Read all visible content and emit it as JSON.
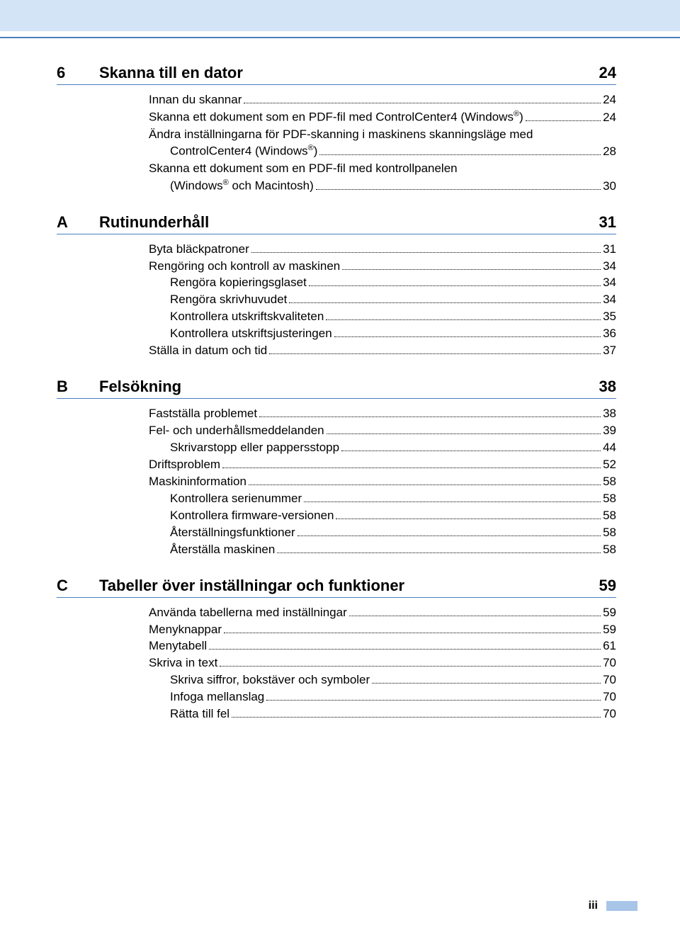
{
  "colors": {
    "top_band": "#d4e4f7",
    "rule": "#4a7fc1",
    "footer_tab": "#a8c5e8",
    "text": "#000000",
    "background": "#ffffff"
  },
  "page_number": "iii",
  "sections": [
    {
      "label": "6",
      "title": "Skanna till en dator",
      "page": "24",
      "entries": [
        {
          "indent": 0,
          "text": "Innan du skannar",
          "page": "24"
        },
        {
          "indent": 0,
          "text": "Skanna ett dokument som en PDF-fil med ControlCenter4 (Windows®)",
          "page": "24",
          "sup": true
        },
        {
          "indent": 0,
          "text": "Ändra inställningarna för PDF-skanning i maskinens skanningsläge med ControlCenter4 (Windows®)",
          "page": "28",
          "sup": true,
          "wrap": "ControlCenter4 (Windows®)"
        },
        {
          "indent": 0,
          "text": "Skanna ett dokument som en PDF-fil med kontrollpanelen (Windows® och Macintosh)",
          "page": "30",
          "sup": true,
          "wrap": "(Windows® och Macintosh)"
        }
      ]
    },
    {
      "label": "A",
      "title": "Rutinunderhåll",
      "page": "31",
      "entries": [
        {
          "indent": 0,
          "text": "Byta bläckpatroner",
          "page": "31"
        },
        {
          "indent": 0,
          "text": "Rengöring och kontroll av maskinen",
          "page": "34"
        },
        {
          "indent": 1,
          "text": "Rengöra kopieringsglaset",
          "page": "34"
        },
        {
          "indent": 1,
          "text": "Rengöra skrivhuvudet",
          "page": "34"
        },
        {
          "indent": 1,
          "text": "Kontrollera utskriftskvaliteten",
          "page": "35"
        },
        {
          "indent": 1,
          "text": "Kontrollera utskriftsjusteringen",
          "page": "36"
        },
        {
          "indent": 0,
          "text": "Ställa in datum och tid",
          "page": "37"
        }
      ]
    },
    {
      "label": "B",
      "title": "Felsökning",
      "page": "38",
      "entries": [
        {
          "indent": 0,
          "text": "Fastställa problemet",
          "page": "38"
        },
        {
          "indent": 0,
          "text": "Fel- och underhållsmeddelanden",
          "page": "39"
        },
        {
          "indent": 1,
          "text": "Skrivarstopp eller pappersstopp",
          "page": "44"
        },
        {
          "indent": 0,
          "text": "Driftsproblem",
          "page": "52"
        },
        {
          "indent": 0,
          "text": "Maskininformation",
          "page": "58"
        },
        {
          "indent": 1,
          "text": "Kontrollera serienummer",
          "page": "58"
        },
        {
          "indent": 1,
          "text": "Kontrollera firmware-versionen",
          "page": "58"
        },
        {
          "indent": 1,
          "text": "Återställningsfunktioner",
          "page": "58"
        },
        {
          "indent": 1,
          "text": "Återställa maskinen",
          "page": "58"
        }
      ]
    },
    {
      "label": "C",
      "title": "Tabeller över inställningar och funktioner",
      "page": "59",
      "entries": [
        {
          "indent": 0,
          "text": "Använda tabellerna med inställningar",
          "page": "59"
        },
        {
          "indent": 0,
          "text": "Menyknappar",
          "page": "59"
        },
        {
          "indent": 0,
          "text": "Menytabell",
          "page": "61"
        },
        {
          "indent": 0,
          "text": "Skriva in text",
          "page": "70"
        },
        {
          "indent": 1,
          "text": "Skriva siffror, bokstäver och symboler",
          "page": "70"
        },
        {
          "indent": 1,
          "text": "Infoga mellanslag",
          "page": "70"
        },
        {
          "indent": 1,
          "text": "Rätta till fel",
          "page": "70"
        }
      ]
    }
  ]
}
